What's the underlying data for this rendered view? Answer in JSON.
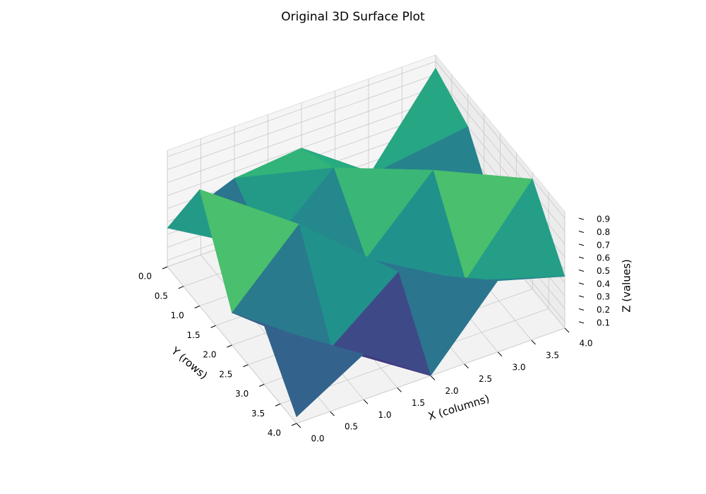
{
  "chart_data": {
    "type": "surface",
    "title": "Original 3D Surface Plot",
    "x_label": "X (columns)",
    "y_label": "Y (rows)",
    "z_label": "Z (values)",
    "x": [
      0,
      1,
      2,
      3,
      4
    ],
    "y": [
      0,
      1,
      2,
      3,
      4
    ],
    "z": [
      [
        0.35,
        0.55,
        0.6,
        0.2,
        0.85
      ],
      [
        0.95,
        0.3,
        0.75,
        0.45,
        0.7
      ],
      [
        0.3,
        0.8,
        0.35,
        0.85,
        0.2
      ],
      [
        0.5,
        0.15,
        0.55,
        0.3,
        0.9
      ],
      [
        0.1,
        0.4,
        0.05,
        0.6,
        0.45
      ]
    ],
    "colormap": "viridis",
    "xlim": [
      0,
      4
    ],
    "ylim": [
      0,
      4
    ],
    "zlim": [
      0.05,
      0.95
    ],
    "xticks": [
      {
        "value": 0,
        "label": "0.0"
      },
      {
        "value": 0.5,
        "label": "0.5"
      },
      {
        "value": 1,
        "label": "1.0"
      },
      {
        "value": 1.5,
        "label": "1.5"
      },
      {
        "value": 2,
        "label": "2.0"
      },
      {
        "value": 2.5,
        "label": "2.5"
      },
      {
        "value": 3,
        "label": "3.0"
      },
      {
        "value": 3.5,
        "label": "3.5"
      },
      {
        "value": 4,
        "label": "4.0"
      }
    ],
    "yticks": [
      {
        "value": 0,
        "label": "0.0"
      },
      {
        "value": 0.5,
        "label": "0.5"
      },
      {
        "value": 1,
        "label": "1.0"
      },
      {
        "value": 1.5,
        "label": "1.5"
      },
      {
        "value": 2,
        "label": "2.0"
      },
      {
        "value": 2.5,
        "label": "2.5"
      },
      {
        "value": 3,
        "label": "3.0"
      },
      {
        "value": 3.5,
        "label": "3.5"
      },
      {
        "value": 4,
        "label": "4.0"
      }
    ],
    "zticks": [
      0.1,
      0.2,
      0.3,
      0.4,
      0.5,
      0.6,
      0.7,
      0.8,
      0.9
    ],
    "grid": true
  }
}
